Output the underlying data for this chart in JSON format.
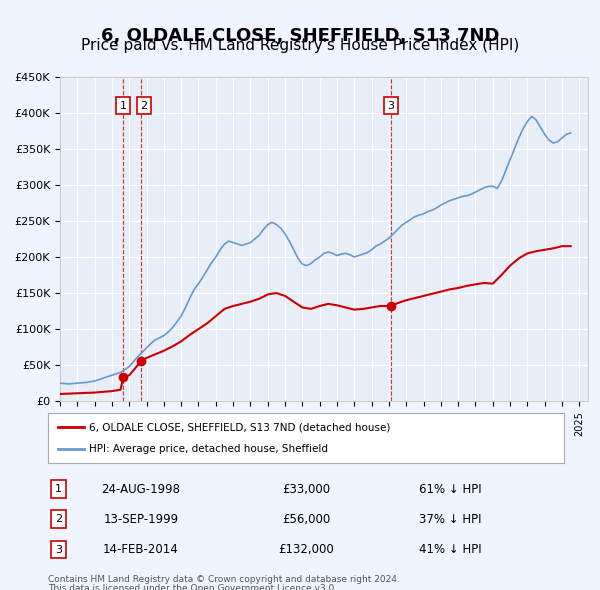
{
  "title": "6, OLDALE CLOSE, SHEFFIELD, S13 7ND",
  "subtitle": "Price paid vs. HM Land Registry's House Price Index (HPI)",
  "ylabel": "",
  "ylim": [
    0,
    450000
  ],
  "xlim_start": 1995.0,
  "xlim_end": 2025.5,
  "background_color": "#f0f4ff",
  "plot_background": "#f0f4ff",
  "grid_color": "#ffffff",
  "red_line_color": "#cc0000",
  "blue_line_color": "#6699cc",
  "dashed_line_color": "#cc0000",
  "title_fontsize": 13,
  "subtitle_fontsize": 11,
  "transactions": [
    {
      "label": "1",
      "date": 1998.648,
      "price": 33000,
      "text_date": "24-AUG-1998",
      "text_price": "£33,000",
      "text_hpi": "61% ↓ HPI"
    },
    {
      "label": "2",
      "date": 1999.706,
      "price": 56000,
      "text_date": "13-SEP-1999",
      "text_price": "£56,000",
      "text_hpi": "37% ↓ HPI"
    },
    {
      "label": "3",
      "date": 2014.12,
      "price": 132000,
      "text_date": "14-FEB-2014",
      "text_price": "£132,000",
      "text_hpi": "41% ↓ HPI"
    }
  ],
  "legend_property_label": "6, OLDALE CLOSE, SHEFFIELD, S13 7ND (detached house)",
  "legend_hpi_label": "HPI: Average price, detached house, Sheffield",
  "footer_line1": "Contains HM Land Registry data © Crown copyright and database right 2024.",
  "footer_line2": "This data is licensed under the Open Government Licence v3.0.",
  "hpi_data": {
    "years": [
      1995.0,
      1995.25,
      1995.5,
      1995.75,
      1996.0,
      1996.25,
      1996.5,
      1996.75,
      1997.0,
      1997.25,
      1997.5,
      1997.75,
      1998.0,
      1998.25,
      1998.5,
      1998.75,
      1999.0,
      1999.25,
      1999.5,
      1999.75,
      2000.0,
      2000.25,
      2000.5,
      2000.75,
      2001.0,
      2001.25,
      2001.5,
      2001.75,
      2002.0,
      2002.25,
      2002.5,
      2002.75,
      2003.0,
      2003.25,
      2003.5,
      2003.75,
      2004.0,
      2004.25,
      2004.5,
      2004.75,
      2005.0,
      2005.25,
      2005.5,
      2005.75,
      2006.0,
      2006.25,
      2006.5,
      2006.75,
      2007.0,
      2007.25,
      2007.5,
      2007.75,
      2008.0,
      2008.25,
      2008.5,
      2008.75,
      2009.0,
      2009.25,
      2009.5,
      2009.75,
      2010.0,
      2010.25,
      2010.5,
      2010.75,
      2011.0,
      2011.25,
      2011.5,
      2011.75,
      2012.0,
      2012.25,
      2012.5,
      2012.75,
      2013.0,
      2013.25,
      2013.5,
      2013.75,
      2014.0,
      2014.25,
      2014.5,
      2014.75,
      2015.0,
      2015.25,
      2015.5,
      2015.75,
      2016.0,
      2016.25,
      2016.5,
      2016.75,
      2017.0,
      2017.25,
      2017.5,
      2017.75,
      2018.0,
      2018.25,
      2018.5,
      2018.75,
      2019.0,
      2019.25,
      2019.5,
      2019.75,
      2020.0,
      2020.25,
      2020.5,
      2020.75,
      2021.0,
      2021.25,
      2021.5,
      2021.75,
      2022.0,
      2022.25,
      2022.5,
      2022.75,
      2023.0,
      2023.25,
      2023.5,
      2023.75,
      2024.0,
      2024.25,
      2024.5
    ],
    "values": [
      25000,
      24500,
      24000,
      24500,
      25000,
      25500,
      26000,
      27000,
      28000,
      30000,
      32000,
      34000,
      36000,
      38000,
      40000,
      44000,
      48000,
      55000,
      62000,
      68000,
      74000,
      80000,
      85000,
      88000,
      91000,
      96000,
      102000,
      110000,
      118000,
      130000,
      143000,
      155000,
      163000,
      172000,
      182000,
      192000,
      200000,
      210000,
      218000,
      222000,
      220000,
      218000,
      216000,
      218000,
      220000,
      225000,
      230000,
      238000,
      245000,
      248000,
      245000,
      240000,
      232000,
      222000,
      210000,
      198000,
      190000,
      188000,
      191000,
      196000,
      200000,
      205000,
      207000,
      205000,
      202000,
      204000,
      205000,
      203000,
      200000,
      202000,
      204000,
      206000,
      210000,
      215000,
      218000,
      222000,
      226000,
      232000,
      238000,
      244000,
      248000,
      252000,
      256000,
      258000,
      260000,
      263000,
      265000,
      268000,
      272000,
      275000,
      278000,
      280000,
      282000,
      284000,
      285000,
      287000,
      290000,
      293000,
      296000,
      298000,
      298000,
      295000,
      305000,
      320000,
      335000,
      350000,
      365000,
      378000,
      388000,
      395000,
      390000,
      380000,
      370000,
      362000,
      358000,
      360000,
      365000,
      370000,
      372000
    ]
  },
  "property_data": {
    "years": [
      1995.0,
      1996.0,
      1997.0,
      1997.5,
      1998.0,
      1998.5,
      1998.648,
      1999.0,
      1999.706,
      2000.0,
      2000.5,
      2001.0,
      2001.5,
      2002.0,
      2002.5,
      2003.0,
      2003.5,
      2004.0,
      2004.5,
      2005.0,
      2005.5,
      2006.0,
      2006.5,
      2007.0,
      2007.5,
      2008.0,
      2008.5,
      2009.0,
      2009.5,
      2010.0,
      2010.5,
      2011.0,
      2011.5,
      2012.0,
      2012.5,
      2013.0,
      2013.5,
      2013.75,
      2014.0,
      2014.12,
      2014.5,
      2015.0,
      2015.5,
      2016.0,
      2016.5,
      2017.0,
      2017.5,
      2018.0,
      2018.5,
      2019.0,
      2019.5,
      2020.0,
      2020.5,
      2021.0,
      2021.5,
      2022.0,
      2022.5,
      2023.0,
      2023.5,
      2024.0,
      2024.5
    ],
    "values": [
      10000,
      11000,
      12000,
      13000,
      14000,
      16000,
      33000,
      36000,
      56000,
      60000,
      65000,
      70000,
      76000,
      83000,
      92000,
      100000,
      108000,
      118000,
      128000,
      132000,
      135000,
      138000,
      142000,
      148000,
      150000,
      146000,
      138000,
      130000,
      128000,
      132000,
      135000,
      133000,
      130000,
      127000,
      128000,
      130000,
      132000,
      132000,
      132000,
      132000,
      136000,
      140000,
      143000,
      146000,
      149000,
      152000,
      155000,
      157000,
      160000,
      162000,
      164000,
      163000,
      175000,
      188000,
      198000,
      205000,
      208000,
      210000,
      212000,
      215000,
      215000
    ]
  }
}
